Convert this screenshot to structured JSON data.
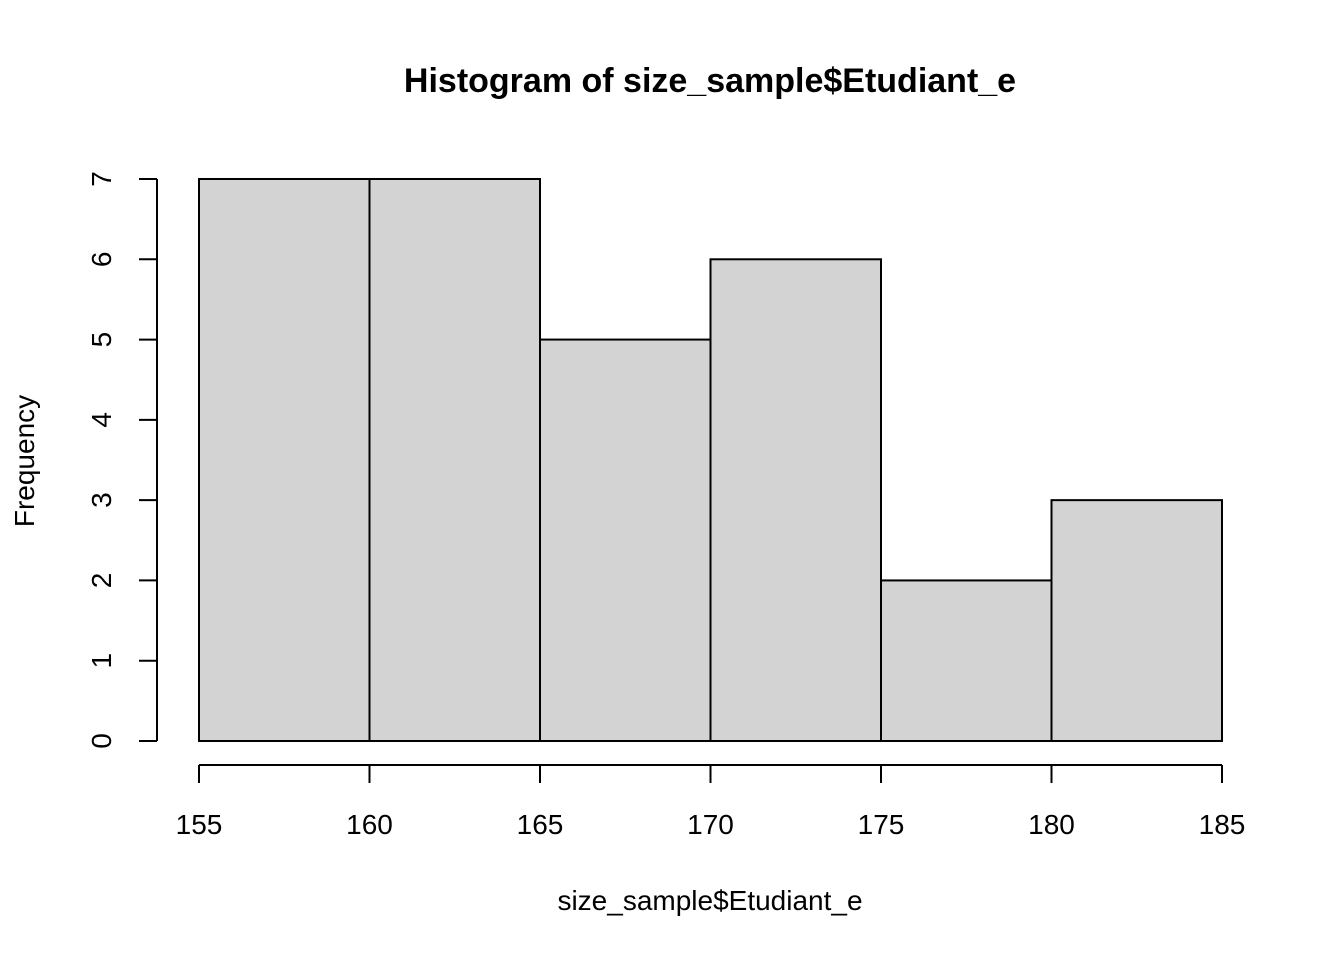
{
  "chart_data": {
    "type": "bar",
    "title": "Histogram of size_sample$Etudiant_e",
    "xlabel": "size_sample$Etudiant_e",
    "ylabel": "Frequency",
    "bin_edges": [
      155,
      160,
      165,
      170,
      175,
      180,
      185
    ],
    "values": [
      7,
      7,
      5,
      6,
      2,
      3
    ],
    "xlim": [
      155,
      185
    ],
    "ylim": [
      0,
      7
    ],
    "x_ticks": [
      "155",
      "160",
      "165",
      "170",
      "175",
      "180",
      "185"
    ],
    "y_ticks": [
      "0",
      "1",
      "2",
      "3",
      "4",
      "5",
      "6",
      "7"
    ],
    "grid": false,
    "colors": {
      "bar_fill": "#d3d3d3",
      "bar_stroke": "#000000"
    }
  }
}
